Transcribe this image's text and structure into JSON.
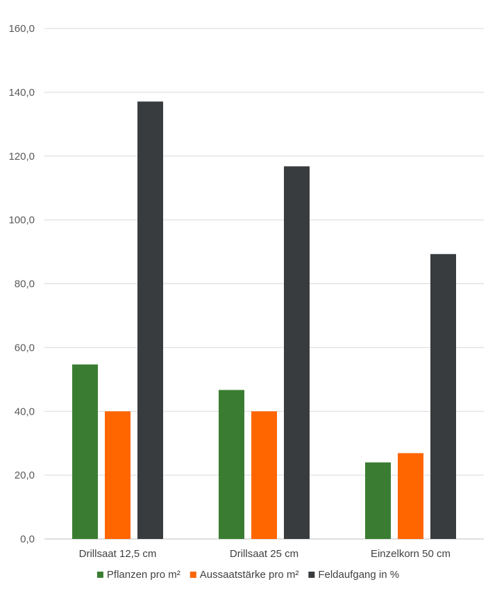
{
  "chart_data": {
    "type": "bar",
    "categories": [
      "Drillsaat 12,5 cm",
      "Drillsaat 25 cm",
      "Einzelkorn 50 cm"
    ],
    "series": [
      {
        "name": "Pflanzen pro m²",
        "color": "#3a7d32",
        "values": [
          54.7,
          46.7,
          24.0
        ]
      },
      {
        "name": "Aussaatstärke pro m²",
        "color": "#ff6600",
        "values": [
          40.0,
          40.0,
          26.9
        ]
      },
      {
        "name": "Feldaufgang in %",
        "color": "#393c3f",
        "values": [
          137.1,
          116.8,
          89.3
        ]
      }
    ],
    "y_ticks": [
      "0,0",
      "20,0",
      "40,0",
      "60,0",
      "80,0",
      "100,0",
      "120,0",
      "140,0",
      "160,0"
    ],
    "ylim": [
      0,
      160
    ],
    "grid": true,
    "legend_position": "bottom"
  }
}
